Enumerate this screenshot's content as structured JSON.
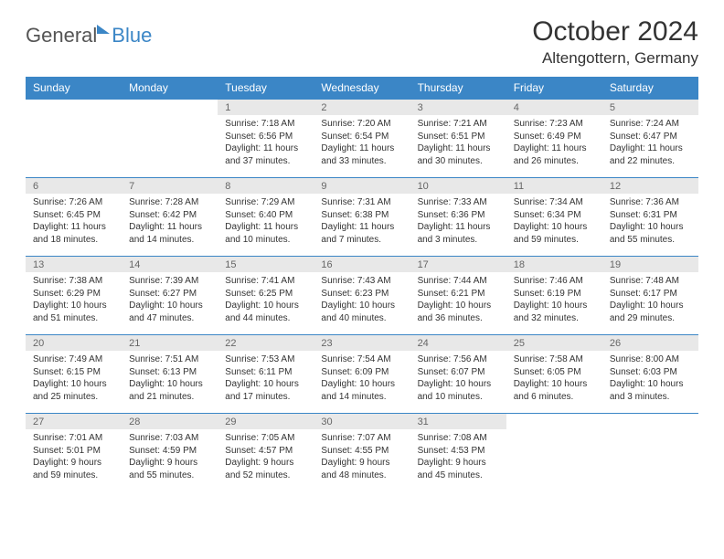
{
  "header": {
    "logo_general": "General",
    "logo_blue": "Blue",
    "month_title": "October 2024",
    "location": "Altengottern, Germany"
  },
  "colors": {
    "header_bg": "#3b86c6",
    "header_text": "#ffffff",
    "daynum_bg": "#e8e8e8",
    "daynum_text": "#666666",
    "body_text": "#333333",
    "row_divider": "#3b86c6"
  },
  "calendar": {
    "type": "table",
    "columns": [
      "Sunday",
      "Monday",
      "Tuesday",
      "Wednesday",
      "Thursday",
      "Friday",
      "Saturday"
    ],
    "first_day_column": 2,
    "days": [
      {
        "n": 1,
        "sunrise": "7:18 AM",
        "sunset": "6:56 PM",
        "daylight": "11 hours and 37 minutes."
      },
      {
        "n": 2,
        "sunrise": "7:20 AM",
        "sunset": "6:54 PM",
        "daylight": "11 hours and 33 minutes."
      },
      {
        "n": 3,
        "sunrise": "7:21 AM",
        "sunset": "6:51 PM",
        "daylight": "11 hours and 30 minutes."
      },
      {
        "n": 4,
        "sunrise": "7:23 AM",
        "sunset": "6:49 PM",
        "daylight": "11 hours and 26 minutes."
      },
      {
        "n": 5,
        "sunrise": "7:24 AM",
        "sunset": "6:47 PM",
        "daylight": "11 hours and 22 minutes."
      },
      {
        "n": 6,
        "sunrise": "7:26 AM",
        "sunset": "6:45 PM",
        "daylight": "11 hours and 18 minutes."
      },
      {
        "n": 7,
        "sunrise": "7:28 AM",
        "sunset": "6:42 PM",
        "daylight": "11 hours and 14 minutes."
      },
      {
        "n": 8,
        "sunrise": "7:29 AM",
        "sunset": "6:40 PM",
        "daylight": "11 hours and 10 minutes."
      },
      {
        "n": 9,
        "sunrise": "7:31 AM",
        "sunset": "6:38 PM",
        "daylight": "11 hours and 7 minutes."
      },
      {
        "n": 10,
        "sunrise": "7:33 AM",
        "sunset": "6:36 PM",
        "daylight": "11 hours and 3 minutes."
      },
      {
        "n": 11,
        "sunrise": "7:34 AM",
        "sunset": "6:34 PM",
        "daylight": "10 hours and 59 minutes."
      },
      {
        "n": 12,
        "sunrise": "7:36 AM",
        "sunset": "6:31 PM",
        "daylight": "10 hours and 55 minutes."
      },
      {
        "n": 13,
        "sunrise": "7:38 AM",
        "sunset": "6:29 PM",
        "daylight": "10 hours and 51 minutes."
      },
      {
        "n": 14,
        "sunrise": "7:39 AM",
        "sunset": "6:27 PM",
        "daylight": "10 hours and 47 minutes."
      },
      {
        "n": 15,
        "sunrise": "7:41 AM",
        "sunset": "6:25 PM",
        "daylight": "10 hours and 44 minutes."
      },
      {
        "n": 16,
        "sunrise": "7:43 AM",
        "sunset": "6:23 PM",
        "daylight": "10 hours and 40 minutes."
      },
      {
        "n": 17,
        "sunrise": "7:44 AM",
        "sunset": "6:21 PM",
        "daylight": "10 hours and 36 minutes."
      },
      {
        "n": 18,
        "sunrise": "7:46 AM",
        "sunset": "6:19 PM",
        "daylight": "10 hours and 32 minutes."
      },
      {
        "n": 19,
        "sunrise": "7:48 AM",
        "sunset": "6:17 PM",
        "daylight": "10 hours and 29 minutes."
      },
      {
        "n": 20,
        "sunrise": "7:49 AM",
        "sunset": "6:15 PM",
        "daylight": "10 hours and 25 minutes."
      },
      {
        "n": 21,
        "sunrise": "7:51 AM",
        "sunset": "6:13 PM",
        "daylight": "10 hours and 21 minutes."
      },
      {
        "n": 22,
        "sunrise": "7:53 AM",
        "sunset": "6:11 PM",
        "daylight": "10 hours and 17 minutes."
      },
      {
        "n": 23,
        "sunrise": "7:54 AM",
        "sunset": "6:09 PM",
        "daylight": "10 hours and 14 minutes."
      },
      {
        "n": 24,
        "sunrise": "7:56 AM",
        "sunset": "6:07 PM",
        "daylight": "10 hours and 10 minutes."
      },
      {
        "n": 25,
        "sunrise": "7:58 AM",
        "sunset": "6:05 PM",
        "daylight": "10 hours and 6 minutes."
      },
      {
        "n": 26,
        "sunrise": "8:00 AM",
        "sunset": "6:03 PM",
        "daylight": "10 hours and 3 minutes."
      },
      {
        "n": 27,
        "sunrise": "7:01 AM",
        "sunset": "5:01 PM",
        "daylight": "9 hours and 59 minutes."
      },
      {
        "n": 28,
        "sunrise": "7:03 AM",
        "sunset": "4:59 PM",
        "daylight": "9 hours and 55 minutes."
      },
      {
        "n": 29,
        "sunrise": "7:05 AM",
        "sunset": "4:57 PM",
        "daylight": "9 hours and 52 minutes."
      },
      {
        "n": 30,
        "sunrise": "7:07 AM",
        "sunset": "4:55 PM",
        "daylight": "9 hours and 48 minutes."
      },
      {
        "n": 31,
        "sunrise": "7:08 AM",
        "sunset": "4:53 PM",
        "daylight": "9 hours and 45 minutes."
      }
    ],
    "labels": {
      "sunrise": "Sunrise:",
      "sunset": "Sunset:",
      "daylight": "Daylight:"
    }
  }
}
